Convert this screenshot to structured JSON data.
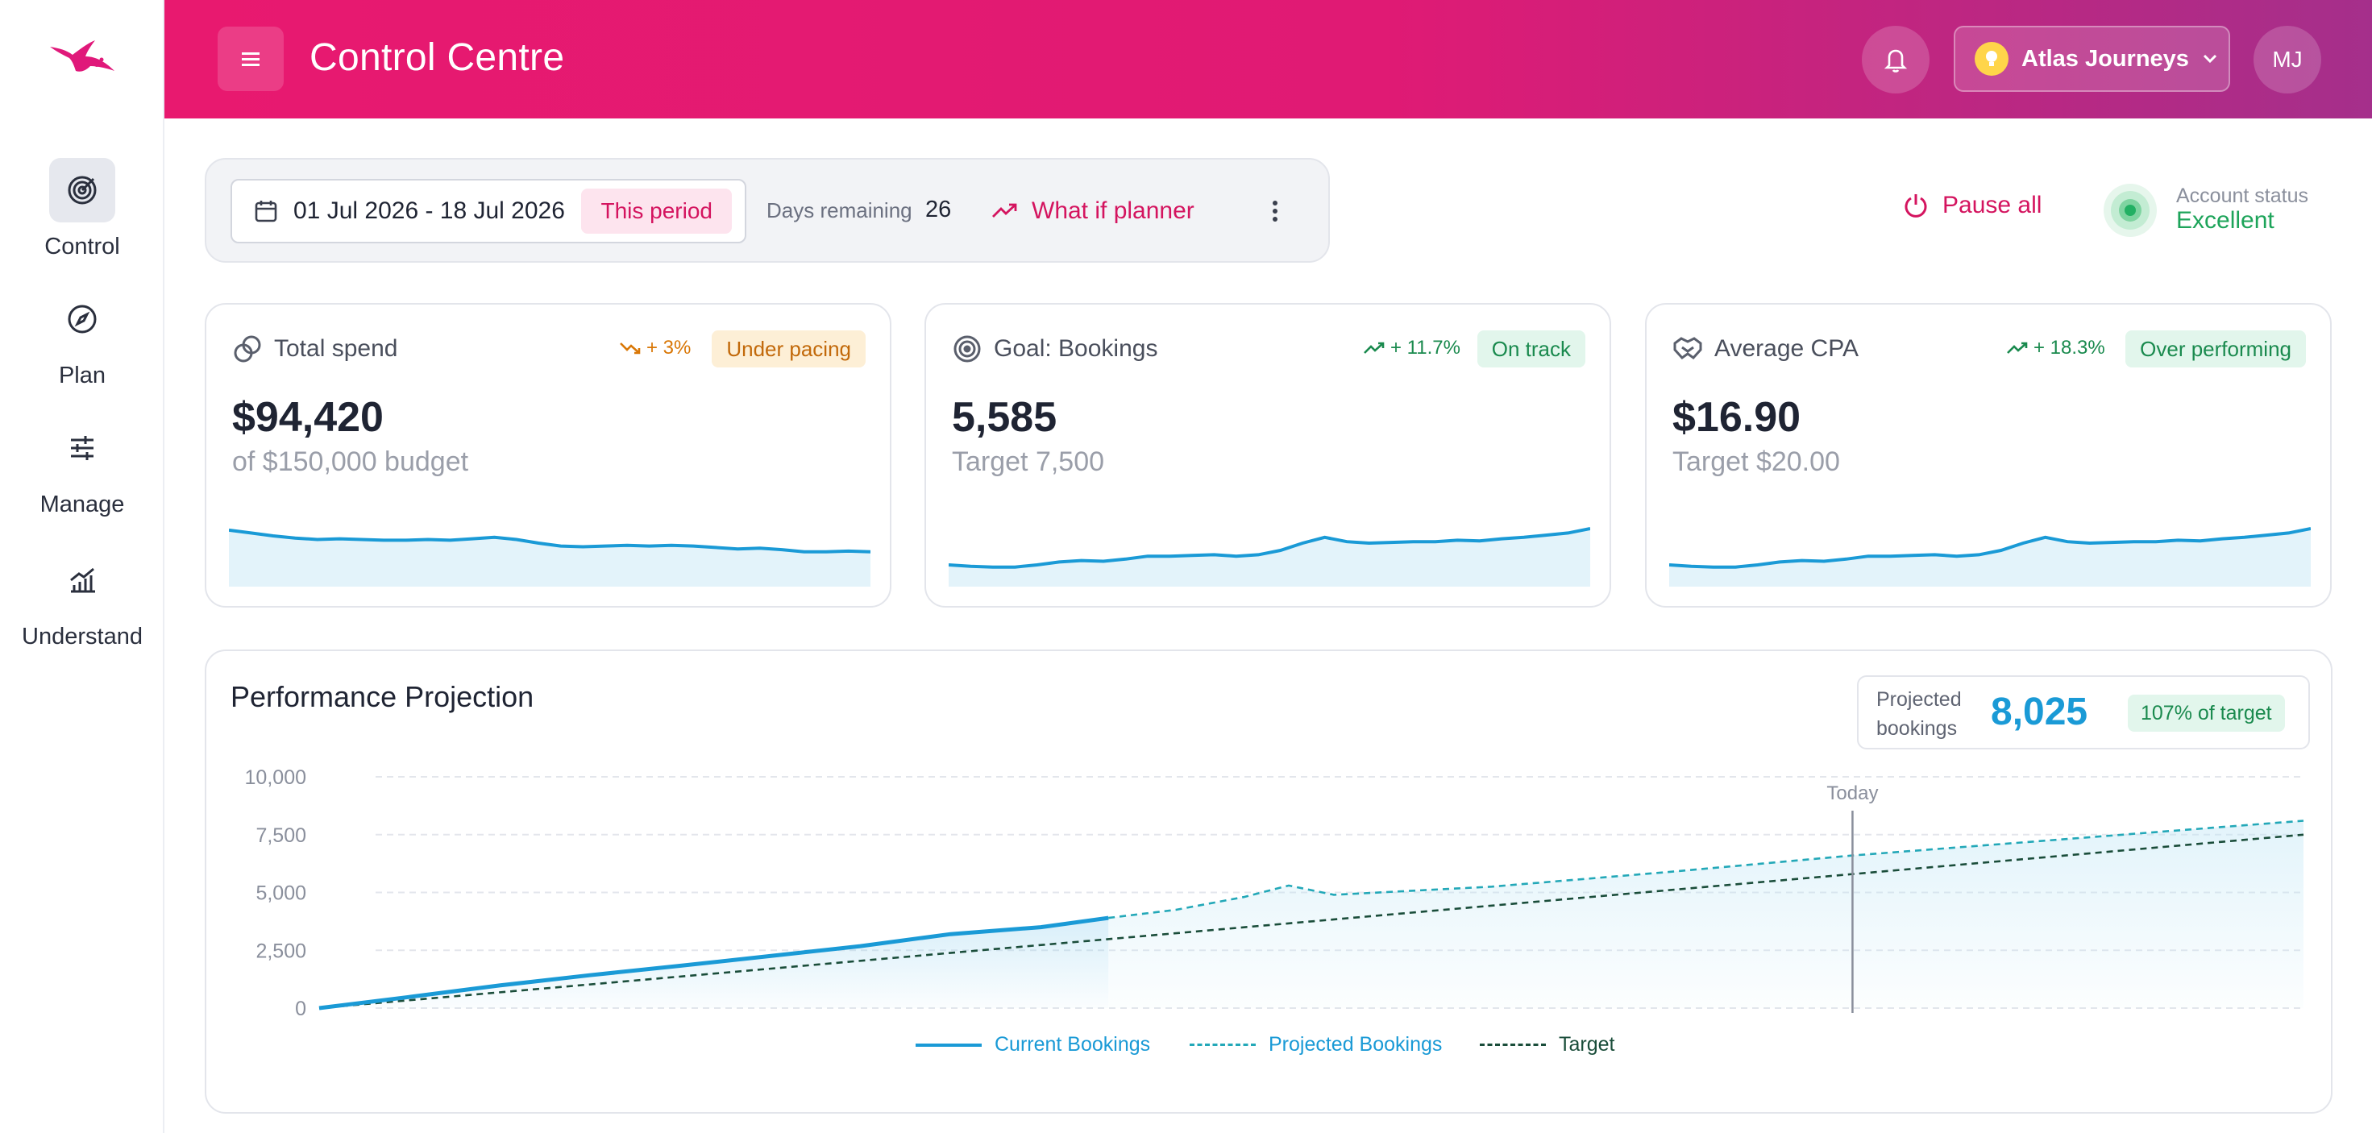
{
  "app": {
    "title": "Control Centre"
  },
  "colors": {
    "brand": "#e8196f",
    "accent_blue": "#1a9ad6",
    "success": "#1da45a",
    "warning": "#d97706"
  },
  "sidebar": {
    "items": [
      {
        "label": "Control",
        "icon": "target-icon",
        "active": true
      },
      {
        "label": "Plan",
        "icon": "compass-icon",
        "active": false
      },
      {
        "label": "Manage",
        "icon": "sliders-icon",
        "active": false
      },
      {
        "label": "Understand",
        "icon": "chart-icon",
        "active": false
      }
    ]
  },
  "header": {
    "account_name": "Atlas Journeys",
    "avatar_initials": "MJ"
  },
  "toolbar": {
    "date_range": "01 Jul 2026 - 18 Jul 2026",
    "period_badge": "This period",
    "days_remaining_label": "Days remaining",
    "days_remaining_value": "26",
    "whatif_label": "What if planner"
  },
  "actions": {
    "pause_all": "Pause all"
  },
  "account_status": {
    "label": "Account status",
    "value": "Excellent"
  },
  "cards": [
    {
      "title": "Total spend",
      "trend": "+ 3%",
      "badge": "Under pacing",
      "value": "$94,420",
      "sub": "of $150,000 budget"
    },
    {
      "title": "Goal: Bookings",
      "trend": "+ 11.7%",
      "badge": "On track",
      "value": "5,585",
      "sub": "Target 7,500"
    },
    {
      "title": "Average CPA",
      "trend": "+ 18.3%",
      "badge": "Over performing",
      "value": "$16.90",
      "sub": "Target $20.00"
    }
  ],
  "projection": {
    "title": "Performance Projection",
    "projected_label": "Projected bookings",
    "projected_value": "8,025",
    "projected_badge": "107% of target",
    "today_label": "Today"
  },
  "chart_data": {
    "type": "line",
    "title": "Performance Projection",
    "y_ticks": [
      "10,000",
      "7,500",
      "5,000",
      "2,500",
      "0"
    ],
    "ylim": [
      0,
      10000
    ],
    "x_range_days": [
      0,
      44
    ],
    "today_day": 34,
    "grid": true,
    "legend_position": "bottom",
    "series": [
      {
        "name": "Current Bookings",
        "style": "solid",
        "color": "#1a9ad6",
        "x": [
          0,
          2,
          4,
          6,
          8,
          10,
          12,
          14,
          16,
          17.5
        ],
        "y": [
          0,
          480,
          980,
          1420,
          1830,
          2250,
          2680,
          3200,
          3500,
          3900
        ]
      },
      {
        "name": "Projected Bookings",
        "style": "dashed",
        "color": "#23a8b8",
        "x": [
          17.5,
          19,
          20.5,
          21.5,
          22.5,
          26,
          30,
          34,
          38,
          42,
          44
        ],
        "y": [
          3900,
          4250,
          4800,
          5300,
          4900,
          5250,
          5900,
          6600,
          7200,
          7800,
          8100
        ]
      },
      {
        "name": "Target",
        "style": "dashed",
        "color": "#1a4d3a",
        "x": [
          0,
          44
        ],
        "y": [
          0,
          7500
        ]
      }
    ]
  },
  "sparklines": [
    [
      0.78,
      0.74,
      0.7,
      0.67,
      0.65,
      0.66,
      0.65,
      0.64,
      0.64,
      0.65,
      0.64,
      0.66,
      0.68,
      0.65,
      0.6,
      0.56,
      0.55,
      0.56,
      0.57,
      0.56,
      0.57,
      0.56,
      0.54,
      0.52,
      0.53,
      0.51,
      0.48,
      0.48,
      0.49,
      0.48
    ],
    [
      0.3,
      0.28,
      0.27,
      0.27,
      0.3,
      0.34,
      0.36,
      0.35,
      0.38,
      0.42,
      0.42,
      0.43,
      0.44,
      0.42,
      0.44,
      0.5,
      0.6,
      0.68,
      0.62,
      0.6,
      0.61,
      0.62,
      0.62,
      0.64,
      0.63,
      0.66,
      0.68,
      0.71,
      0.74,
      0.8
    ],
    [
      0.3,
      0.28,
      0.27,
      0.27,
      0.3,
      0.34,
      0.36,
      0.35,
      0.38,
      0.42,
      0.42,
      0.43,
      0.44,
      0.42,
      0.44,
      0.5,
      0.6,
      0.68,
      0.62,
      0.6,
      0.61,
      0.62,
      0.62,
      0.64,
      0.63,
      0.66,
      0.68,
      0.71,
      0.74,
      0.8
    ]
  ]
}
